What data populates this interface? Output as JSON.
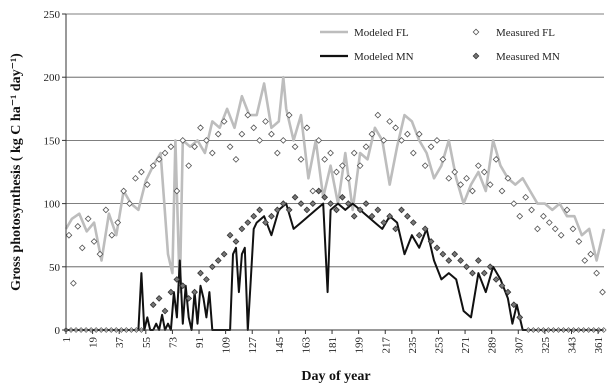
{
  "chart_data": {
    "type": "line",
    "title": "",
    "xlabel": "Day of year",
    "ylabel": "Gross photosynthesis ( kg C ha⁻¹ day⁻¹)",
    "xlim": [
      1,
      365
    ],
    "ylim": [
      0,
      250
    ],
    "yticks": [
      0,
      50,
      100,
      150,
      200,
      250
    ],
    "xticks": [
      1,
      19,
      37,
      55,
      73,
      91,
      109,
      127,
      145,
      163,
      181,
      199,
      217,
      235,
      253,
      271,
      289,
      307,
      325,
      343,
      361
    ],
    "grid": "horizontal",
    "legend_position": "top-right",
    "series": [
      {
        "name": "Modeled FL",
        "kind": "line",
        "color": "#bdbdbd",
        "x": [
          1,
          5,
          10,
          15,
          20,
          25,
          30,
          35,
          40,
          45,
          50,
          55,
          60,
          65,
          70,
          73,
          75,
          78,
          80,
          85,
          90,
          95,
          100,
          105,
          110,
          115,
          120,
          125,
          130,
          135,
          140,
          145,
          148,
          150,
          155,
          160,
          165,
          170,
          175,
          180,
          185,
          190,
          195,
          200,
          205,
          210,
          215,
          220,
          225,
          230,
          235,
          240,
          245,
          250,
          255,
          260,
          265,
          270,
          275,
          280,
          285,
          290,
          295,
          300,
          305,
          310,
          315,
          320,
          325,
          330,
          335,
          340,
          345,
          350,
          355,
          360,
          365
        ],
        "y": [
          80,
          88,
          92,
          78,
          85,
          55,
          92,
          75,
          110,
          100,
          95,
          118,
          130,
          140,
          60,
          45,
          150,
          30,
          150,
          145,
          150,
          140,
          165,
          160,
          175,
          160,
          185,
          170,
          170,
          195,
          160,
          165,
          200,
          175,
          150,
          170,
          120,
          150,
          105,
          130,
          100,
          140,
          95,
          140,
          135,
          160,
          150,
          115,
          145,
          170,
          165,
          150,
          140,
          120,
          130,
          150,
          120,
          100,
          115,
          125,
          110,
          150,
          130,
          120,
          115,
          120,
          110,
          100,
          100,
          95,
          100,
          90,
          90,
          75,
          80,
          55,
          80
        ]
      },
      {
        "name": "Modeled MN",
        "kind": "line",
        "color": "#111111",
        "x": [
          1,
          20,
          40,
          50,
          52,
          54,
          56,
          58,
          60,
          62,
          64,
          66,
          68,
          70,
          72,
          74,
          76,
          78,
          80,
          82,
          84,
          86,
          88,
          90,
          92,
          94,
          96,
          98,
          100,
          102,
          104,
          106,
          108,
          110,
          112,
          114,
          116,
          118,
          120,
          122,
          124,
          126,
          128,
          130,
          135,
          140,
          145,
          150,
          155,
          160,
          165,
          170,
          175,
          178,
          180,
          185,
          190,
          195,
          200,
          205,
          210,
          215,
          220,
          225,
          230,
          235,
          240,
          245,
          250,
          255,
          260,
          265,
          270,
          275,
          280,
          285,
          290,
          295,
          300,
          303,
          306,
          310,
          315,
          320,
          340,
          365
        ],
        "y": [
          0,
          0,
          0,
          0,
          45,
          0,
          10,
          0,
          0,
          5,
          0,
          12,
          0,
          5,
          0,
          30,
          10,
          55,
          5,
          35,
          10,
          0,
          30,
          5,
          35,
          25,
          10,
          30,
          0,
          0,
          0,
          0,
          0,
          0,
          0,
          60,
          65,
          30,
          60,
          65,
          0,
          40,
          80,
          85,
          90,
          75,
          95,
          100,
          80,
          85,
          90,
          95,
          100,
          30,
          95,
          100,
          95,
          100,
          95,
          90,
          85,
          80,
          90,
          85,
          60,
          75,
          65,
          80,
          55,
          40,
          45,
          40,
          15,
          10,
          45,
          30,
          50,
          40,
          25,
          5,
          20,
          0,
          0,
          0,
          0,
          0
        ]
      },
      {
        "name": "Measured FL",
        "kind": "scatter",
        "marker": "open-diamond",
        "color": "#555555",
        "x": [
          3,
          6,
          9,
          12,
          16,
          20,
          24,
          28,
          32,
          36,
          40,
          44,
          48,
          52,
          56,
          60,
          64,
          68,
          72,
          76,
          80,
          84,
          88,
          92,
          96,
          100,
          104,
          108,
          112,
          116,
          120,
          124,
          128,
          132,
          136,
          140,
          144,
          148,
          152,
          156,
          160,
          164,
          168,
          172,
          176,
          180,
          184,
          188,
          192,
          196,
          200,
          204,
          208,
          212,
          216,
          220,
          224,
          228,
          232,
          236,
          240,
          244,
          248,
          252,
          256,
          260,
          264,
          268,
          272,
          276,
          280,
          284,
          288,
          292,
          296,
          300,
          304,
          308,
          312,
          316,
          320,
          324,
          328,
          332,
          336,
          340,
          344,
          348,
          352,
          356,
          360,
          364
        ],
        "y": [
          75,
          37,
          82,
          65,
          88,
          70,
          60,
          95,
          75,
          85,
          110,
          100,
          120,
          125,
          115,
          130,
          135,
          140,
          145,
          110,
          150,
          130,
          145,
          160,
          150,
          140,
          155,
          165,
          145,
          135,
          155,
          170,
          160,
          150,
          165,
          155,
          140,
          150,
          170,
          145,
          135,
          160,
          110,
          150,
          135,
          140,
          125,
          130,
          120,
          140,
          130,
          145,
          155,
          170,
          150,
          165,
          160,
          150,
          155,
          140,
          155,
          130,
          145,
          150,
          135,
          120,
          125,
          115,
          120,
          110,
          130,
          125,
          115,
          135,
          110,
          120,
          100,
          90,
          105,
          95,
          80,
          90,
          85,
          80,
          75,
          95,
          80,
          70,
          55,
          60,
          45,
          30
        ]
      },
      {
        "name": "Measured MN",
        "kind": "scatter",
        "marker": "filled-diamond",
        "color": "#777777",
        "x": [
          60,
          64,
          68,
          72,
          76,
          80,
          84,
          88,
          92,
          96,
          100,
          104,
          108,
          112,
          116,
          120,
          124,
          128,
          132,
          136,
          140,
          144,
          148,
          152,
          156,
          160,
          164,
          168,
          172,
          176,
          180,
          184,
          188,
          192,
          196,
          200,
          204,
          208,
          212,
          216,
          220,
          224,
          228,
          232,
          236,
          240,
          244,
          248,
          252,
          256,
          260,
          264,
          268,
          272,
          276,
          280,
          284,
          288,
          292,
          296,
          300,
          304,
          308
        ],
        "y": [
          20,
          25,
          15,
          30,
          40,
          35,
          25,
          30,
          45,
          40,
          50,
          55,
          60,
          75,
          70,
          80,
          85,
          90,
          95,
          85,
          90,
          95,
          100,
          95,
          105,
          100,
          95,
          100,
          110,
          105,
          100,
          95,
          105,
          100,
          90,
          95,
          100,
          90,
          95,
          85,
          90,
          80,
          95,
          90,
          85,
          75,
          80,
          70,
          65,
          60,
          55,
          60,
          55,
          50,
          45,
          55,
          45,
          50,
          40,
          35,
          30,
          20,
          10
        ]
      }
    ]
  }
}
